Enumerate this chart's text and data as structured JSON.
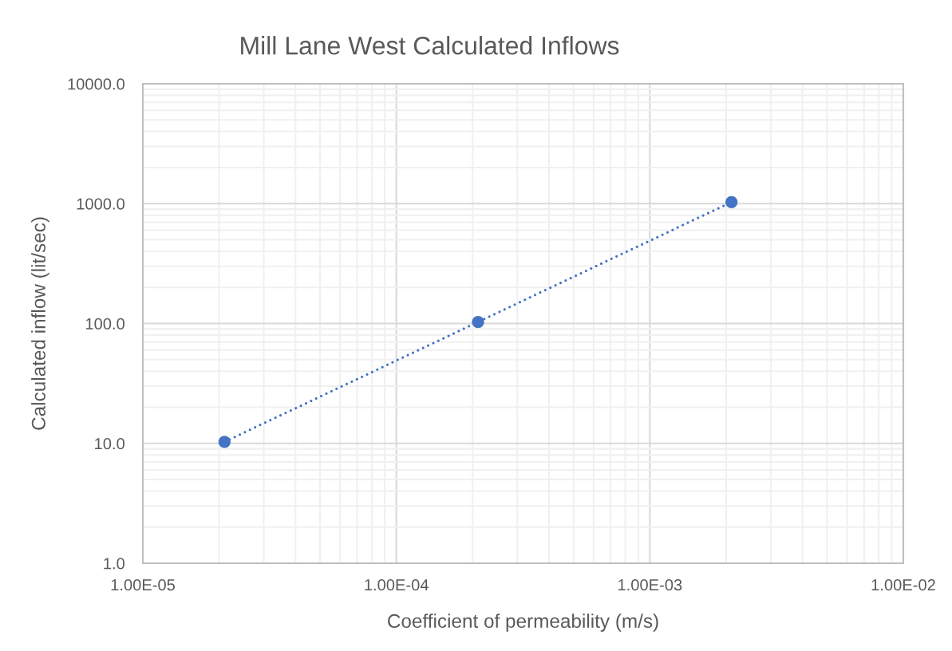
{
  "chart_data": {
    "type": "line",
    "title": "Mill Lane West Calculated Inflows",
    "xlabel": "Coefficient of permeability (m/s)",
    "ylabel": "Calculated inflow (lit/sec)",
    "x": [
      2.1e-05,
      0.00021,
      0.0021
    ],
    "series": [
      {
        "color": "#4472c4",
        "values": [
          10.3,
          103,
          1030
        ]
      }
    ],
    "log": "xy",
    "xlim": [
      1e-05,
      0.01
    ],
    "ylim": [
      1,
      10000
    ],
    "xticks": [
      {
        "value": 1e-05,
        "label": "1.00E-05"
      },
      {
        "value": 0.0001,
        "label": "1.00E-04"
      },
      {
        "value": 0.001,
        "label": "1.00E-03"
      },
      {
        "value": 0.01,
        "label": "1.00E-02"
      }
    ],
    "yticks": [
      {
        "value": 1,
        "label": "1.0"
      },
      {
        "value": 10,
        "label": "10.0"
      },
      {
        "value": 100,
        "label": "100.0"
      },
      {
        "value": 1000,
        "label": "1000.0"
      },
      {
        "value": 10000,
        "label": "10000.0"
      }
    ],
    "grid": true,
    "marker": "circle",
    "line_style": "dotted"
  }
}
